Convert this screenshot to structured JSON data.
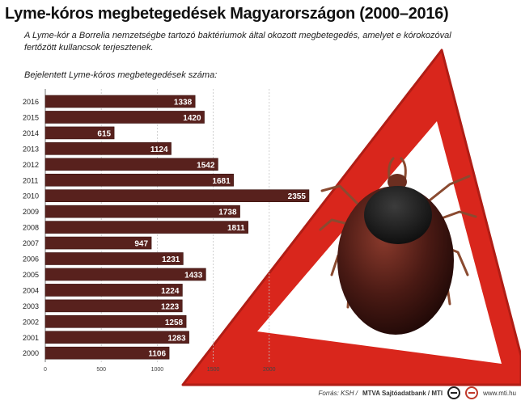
{
  "header": {
    "title": "Lyme-kóros megbetegedések Magyarországon (2000–2016)",
    "subtitle": "A Lyme-kór a Borrelia nemzetségbe tartozó baktériumok által okozott megbetegedés, amelyet e kórokozóval fertőzött kullancsok terjesztenek.",
    "chart_label": "Bejelentett Lyme-kóros megbetegedések száma:"
  },
  "footer": {
    "source": "Forrás: KSH /",
    "org": "MTVA Sajtóadatbank / MTI",
    "url": "www.mti.hu"
  },
  "colors": {
    "bar": "#58211d",
    "bar_edge": "#3a120f",
    "sign_red": "#d9261c",
    "tick_body": "#3b1512"
  },
  "icons": [
    "warning-sign-icon",
    "tick-icon",
    "mtva-logo-icon",
    "mti-logo-icon"
  ],
  "chart_data": {
    "type": "bar",
    "orientation": "horizontal",
    "title": "Bejelentett Lyme-kóros megbetegedések száma:",
    "categories": [
      "2016",
      "2015",
      "2014",
      "2013",
      "2012",
      "2011",
      "2010",
      "2009",
      "2008",
      "2007",
      "2006",
      "2005",
      "2004",
      "2003",
      "2002",
      "2001",
      "2000"
    ],
    "values": [
      1338,
      1420,
      615,
      1124,
      1542,
      1681,
      2355,
      1738,
      1811,
      947,
      1231,
      1433,
      1224,
      1223,
      1258,
      1283,
      1106
    ],
    "xlim": [
      0,
      2500
    ],
    "x_ticks": [
      "0",
      "500",
      "1000",
      "1500",
      "2000"
    ],
    "grid": true,
    "data_labels": true
  }
}
